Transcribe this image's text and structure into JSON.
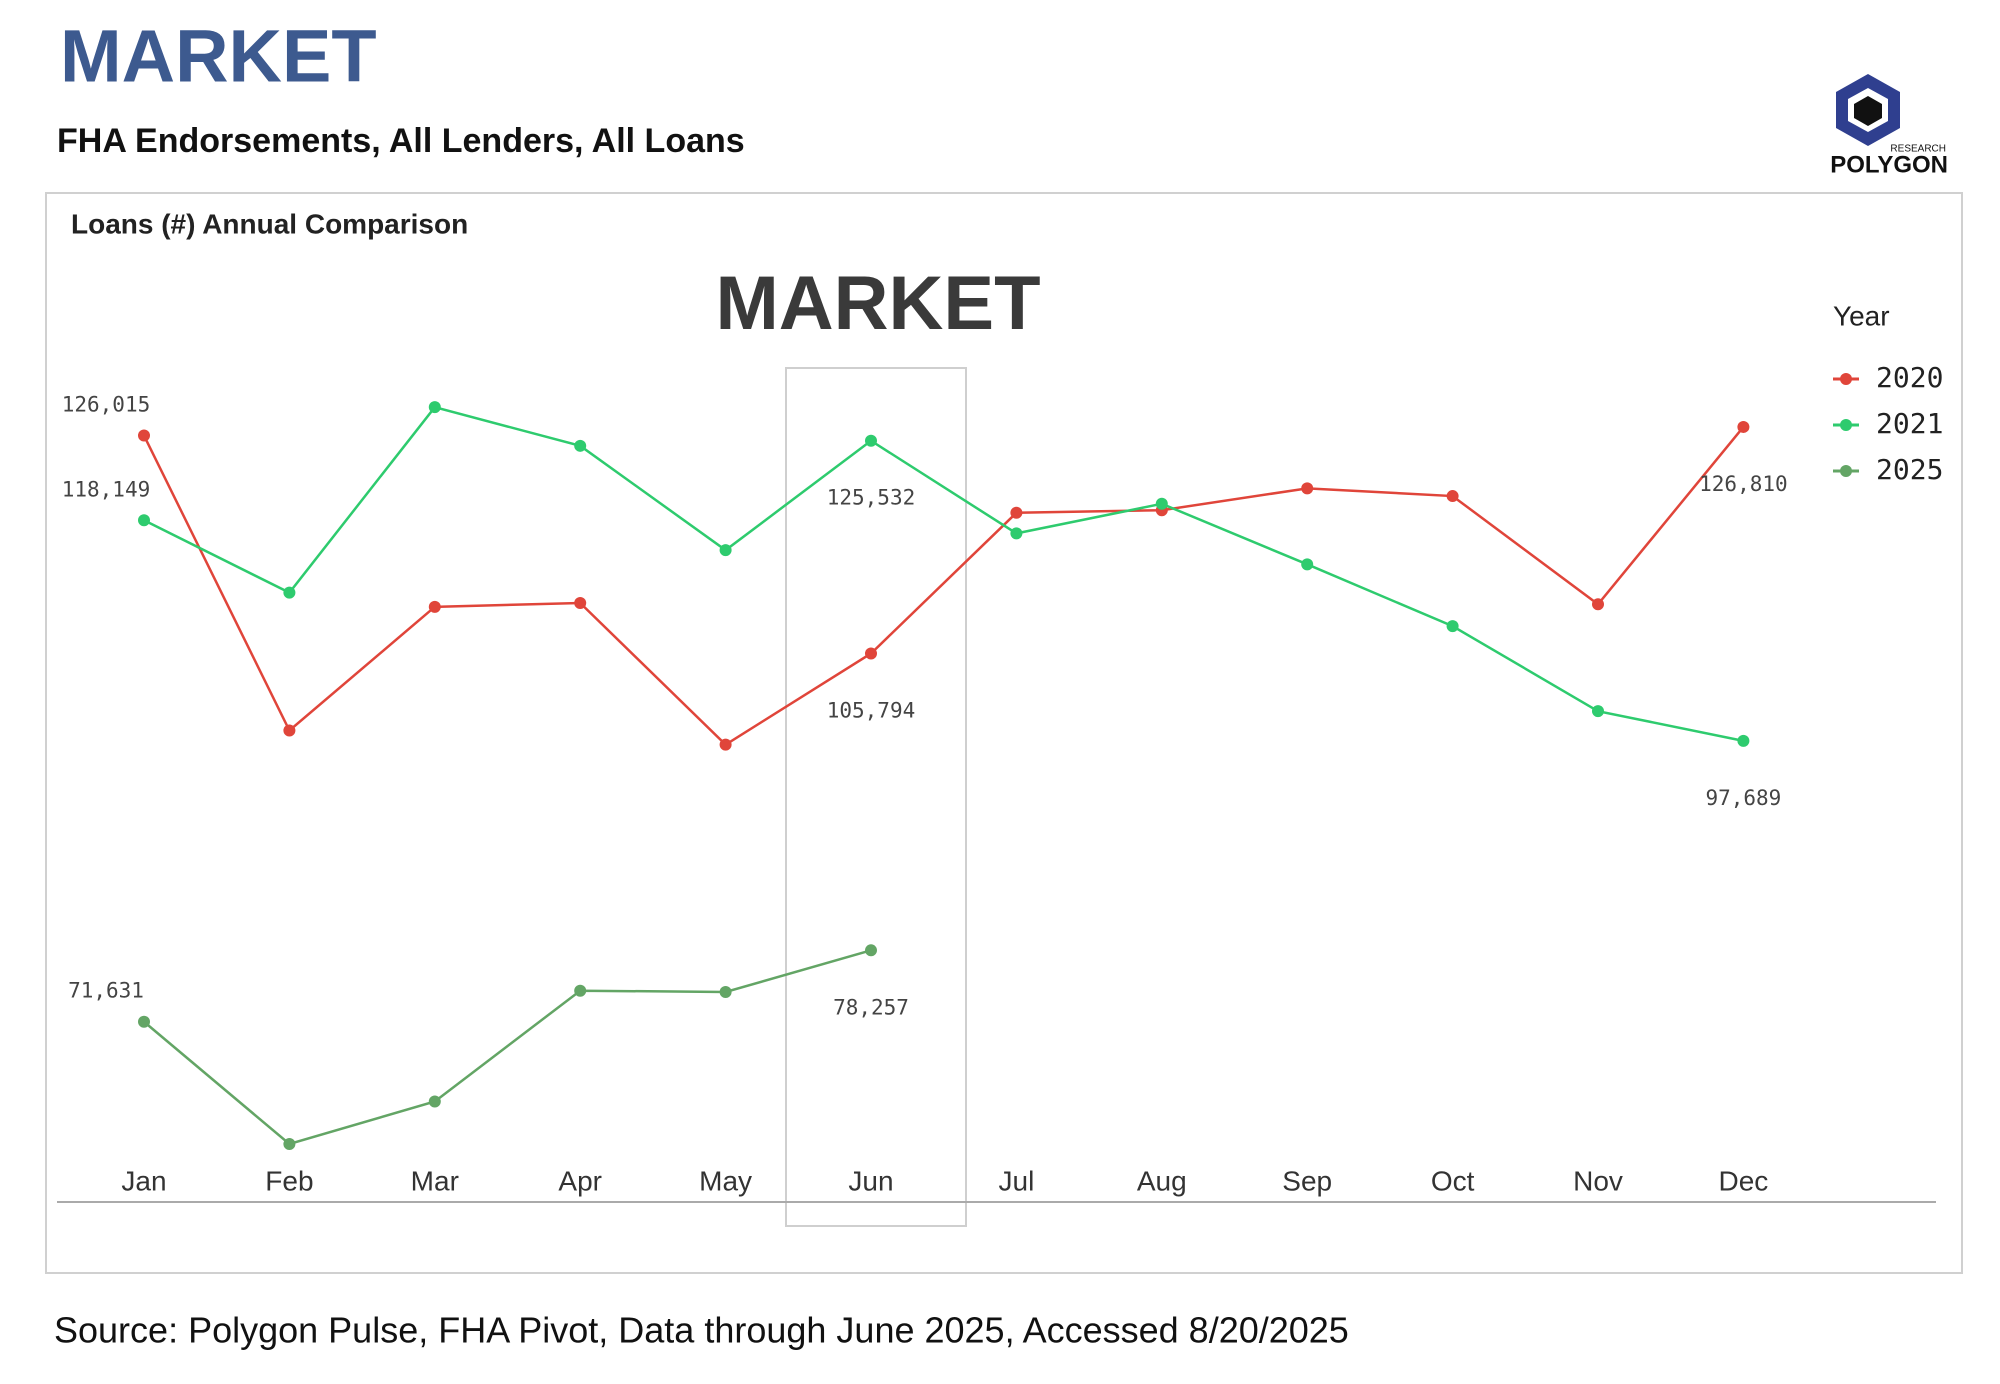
{
  "header": {
    "title": "MARKET",
    "subtitle": "FHA Endorsements, All Lenders, All Loans"
  },
  "logo": {
    "name": "POLYGON",
    "tag": "RESEARCH"
  },
  "chart_data": {
    "type": "line",
    "title": "Loans (#) Annual Comparison",
    "watermark": "MARKET",
    "legend_title": "Year",
    "legend": "right",
    "categories": [
      "Jan",
      "Feb",
      "Mar",
      "Apr",
      "May",
      "Jun",
      "Jul",
      "Aug",
      "Sep",
      "Oct",
      "Nov",
      "Dec"
    ],
    "ylim": [
      55000,
      132000
    ],
    "series": [
      {
        "name": "2020",
        "color": "#e0453a",
        "values": [
          126015,
          98649,
          110121,
          110480,
          97335,
          105794,
          118845,
          119084,
          121115,
          120398,
          110360,
          126810
        ],
        "value_labels": [
          "126,015",
          null,
          null,
          null,
          null,
          "105,794",
          null,
          null,
          null,
          null,
          null,
          "126,810"
        ]
      },
      {
        "name": "2021",
        "color": "#2ecb6e",
        "values": [
          118149,
          111436,
          128644,
          125059,
          115379,
          125532,
          116933,
          119681,
          114065,
          108329,
          100442,
          97689
        ],
        "value_labels": [
          "118,149",
          null,
          null,
          null,
          null,
          "125,532",
          null,
          null,
          null,
          null,
          null,
          "97,689"
        ]
      },
      {
        "name": "2025",
        "color": "#63a565",
        "values": [
          71631,
          60290,
          64233,
          74510,
          74390,
          78257,
          null,
          null,
          null,
          null,
          null,
          null
        ],
        "value_labels": [
          "71,631",
          null,
          null,
          null,
          null,
          "78,257",
          null,
          null,
          null,
          null,
          null,
          null
        ]
      }
    ]
  },
  "footer": {
    "source": "Source: Polygon Pulse, FHA Pivot, Data through June 2025, Accessed 8/20/2025"
  }
}
